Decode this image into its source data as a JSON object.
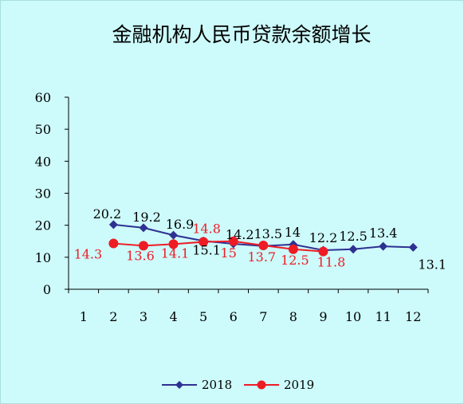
{
  "chart_data": {
    "type": "line",
    "title": "金融机构人民币贷款余额增长",
    "xlabel": "",
    "ylabel": "",
    "ylim": [
      0,
      60
    ],
    "yticks": [
      0,
      10,
      20,
      30,
      40,
      50,
      60
    ],
    "categories": [
      "1",
      "2",
      "3",
      "4",
      "5",
      "6",
      "7",
      "8",
      "9",
      "10",
      "11",
      "12"
    ],
    "grid": false,
    "legend_position": "bottom",
    "series": [
      {
        "name": "2018",
        "color": "#2e3192",
        "marker": "diamond",
        "x": [
          "2",
          "3",
          "4",
          "5",
          "6",
          "7",
          "8",
          "9",
          "10",
          "11",
          "12"
        ],
        "values": [
          20.2,
          19.2,
          16.9,
          15.1,
          14.2,
          13.5,
          14,
          12.2,
          12.5,
          13.4,
          13.1
        ],
        "labels": [
          "20.2",
          "19.2",
          "16.9",
          "15.1",
          "14.2",
          "13.5",
          "14",
          "12.2",
          "12.5",
          "13.4",
          "13.1"
        ]
      },
      {
        "name": "2019",
        "color": "#ee1c25",
        "marker": "circle",
        "x": [
          "2",
          "3",
          "4",
          "5",
          "6",
          "7",
          "8",
          "9"
        ],
        "values": [
          14.3,
          13.6,
          14.1,
          14.8,
          15,
          13.7,
          12.5,
          11.8
        ],
        "labels": [
          "14.3",
          "13.6",
          "14.1",
          "14.8",
          "15",
          "13.7",
          "12.5",
          "11.8"
        ]
      }
    ]
  }
}
